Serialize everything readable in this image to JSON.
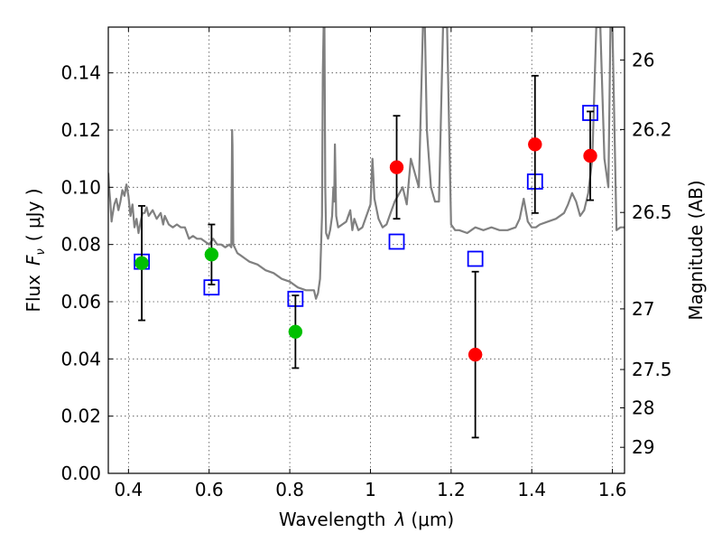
{
  "chart_data": {
    "type": "scatter",
    "xlim": [
      0.35,
      1.63
    ],
    "ylim": [
      0.0,
      0.156
    ],
    "grid": true,
    "xlabel": {
      "prefix": "Wavelength",
      "symbol": "λ",
      "unit": "(μm)"
    },
    "ylabel": {
      "prefix": "Flux",
      "symbol": "F",
      "subscript": "ν",
      "unit": "( μJy )"
    },
    "y2label": "Magnitude (AB)",
    "x_ticks": [
      {
        "v": 0.4,
        "label": "0.4"
      },
      {
        "v": 0.6,
        "label": "0.6"
      },
      {
        "v": 0.8,
        "label": "0.8"
      },
      {
        "v": 1.0,
        "label": "1"
      },
      {
        "v": 1.2,
        "label": "1.2"
      },
      {
        "v": 1.4,
        "label": "1.4"
      },
      {
        "v": 1.6,
        "label": "1.6"
      }
    ],
    "y_ticks": [
      {
        "v": 0.0,
        "label": "0.00"
      },
      {
        "v": 0.02,
        "label": "0.02"
      },
      {
        "v": 0.04,
        "label": "0.04"
      },
      {
        "v": 0.06,
        "label": "0.06"
      },
      {
        "v": 0.08,
        "label": "0.08"
      },
      {
        "v": 0.1,
        "label": "0.10"
      },
      {
        "v": 0.12,
        "label": "0.12"
      },
      {
        "v": 0.14,
        "label": "0.14"
      }
    ],
    "y2_ticks": [
      {
        "flux": 0.1445,
        "label": "26"
      },
      {
        "flux": 0.1202,
        "label": "26.2"
      },
      {
        "flux": 0.0912,
        "label": "26.5"
      },
      {
        "flux": 0.0575,
        "label": "27"
      },
      {
        "flux": 0.0363,
        "label": "27.5"
      },
      {
        "flux": 0.0229,
        "label": "28"
      },
      {
        "flux": 0.0091,
        "label": "29"
      }
    ],
    "sed_model": {
      "color": "#808080",
      "x": [
        0.35,
        0.352,
        0.355,
        0.358,
        0.36,
        0.365,
        0.37,
        0.375,
        0.38,
        0.385,
        0.39,
        0.395,
        0.4,
        0.405,
        0.41,
        0.415,
        0.42,
        0.425,
        0.43,
        0.435,
        0.44,
        0.445,
        0.45,
        0.46,
        0.47,
        0.48,
        0.486,
        0.49,
        0.5,
        0.51,
        0.52,
        0.53,
        0.54,
        0.55,
        0.56,
        0.57,
        0.58,
        0.59,
        0.6,
        0.61,
        0.62,
        0.63,
        0.64,
        0.65,
        0.655,
        0.657,
        0.658,
        0.66,
        0.67,
        0.68,
        0.69,
        0.7,
        0.72,
        0.74,
        0.76,
        0.78,
        0.8,
        0.82,
        0.84,
        0.86,
        0.865,
        0.87,
        0.875,
        0.88,
        0.882,
        0.884,
        0.886,
        0.888,
        0.89,
        0.895,
        0.9,
        0.905,
        0.908,
        0.91,
        0.912,
        0.915,
        0.92,
        0.93,
        0.94,
        0.95,
        0.955,
        0.96,
        0.97,
        0.98,
        0.99,
        1.0,
        1.005,
        1.01,
        1.02,
        1.03,
        1.04,
        1.05,
        1.06,
        1.08,
        1.09,
        1.1,
        1.11,
        1.12,
        1.13,
        1.135,
        1.14,
        1.15,
        1.16,
        1.17,
        1.18,
        1.19,
        1.2,
        1.21,
        1.22,
        1.24,
        1.25,
        1.26,
        1.28,
        1.3,
        1.32,
        1.34,
        1.36,
        1.37,
        1.38,
        1.39,
        1.4,
        1.41,
        1.42,
        1.44,
        1.46,
        1.48,
        1.49,
        1.5,
        1.51,
        1.52,
        1.53,
        1.54,
        1.55,
        1.56,
        1.57,
        1.58,
        1.59,
        1.595,
        1.6,
        1.61,
        1.62,
        1.63
      ],
      "y": [
        0.105,
        0.1,
        0.095,
        0.088,
        0.09,
        0.094,
        0.096,
        0.092,
        0.095,
        0.099,
        0.097,
        0.101,
        0.097,
        0.09,
        0.094,
        0.086,
        0.089,
        0.084,
        0.088,
        0.091,
        0.091,
        0.093,
        0.09,
        0.092,
        0.089,
        0.091,
        0.087,
        0.09,
        0.087,
        0.086,
        0.087,
        0.086,
        0.086,
        0.082,
        0.083,
        0.082,
        0.082,
        0.081,
        0.08,
        0.082,
        0.08,
        0.08,
        0.079,
        0.08,
        0.079,
        0.12,
        0.115,
        0.08,
        0.077,
        0.076,
        0.075,
        0.074,
        0.073,
        0.071,
        0.07,
        0.068,
        0.067,
        0.065,
        0.064,
        0.064,
        0.061,
        0.063,
        0.068,
        0.09,
        0.14,
        0.156,
        0.156,
        0.1,
        0.084,
        0.082,
        0.085,
        0.09,
        0.1,
        0.095,
        0.115,
        0.09,
        0.086,
        0.087,
        0.088,
        0.092,
        0.085,
        0.089,
        0.085,
        0.086,
        0.09,
        0.094,
        0.11,
        0.096,
        0.089,
        0.086,
        0.087,
        0.091,
        0.095,
        0.1,
        0.094,
        0.11,
        0.105,
        0.1,
        0.156,
        0.156,
        0.12,
        0.1,
        0.095,
        0.095,
        0.156,
        0.156,
        0.087,
        0.085,
        0.085,
        0.084,
        0.085,
        0.086,
        0.085,
        0.086,
        0.085,
        0.085,
        0.086,
        0.089,
        0.096,
        0.088,
        0.086,
        0.086,
        0.087,
        0.088,
        0.089,
        0.091,
        0.094,
        0.098,
        0.095,
        0.09,
        0.092,
        0.098,
        0.11,
        0.156,
        0.156,
        0.11,
        0.1,
        0.156,
        0.156,
        0.085,
        0.086,
        0.086
      ]
    },
    "series": [
      {
        "marker": "filled-circle",
        "color": "#00c000",
        "points": [
          {
            "x": 0.433,
            "y": 0.0735,
            "err": 0.02
          },
          {
            "x": 0.606,
            "y": 0.0765,
            "err": 0.0105
          },
          {
            "x": 0.814,
            "y": 0.0495,
            "err": 0.0127
          }
        ]
      },
      {
        "marker": "filled-circle",
        "color": "#ff0000",
        "points": [
          {
            "x": 1.065,
            "y": 0.107,
            "err": 0.018
          },
          {
            "x": 1.26,
            "y": 0.0415,
            "err": 0.029
          },
          {
            "x": 1.408,
            "y": 0.115,
            "err": 0.024
          },
          {
            "x": 1.545,
            "y": 0.111,
            "err": 0.0155
          }
        ]
      },
      {
        "marker": "open-square",
        "color": "#0000ff",
        "points": [
          {
            "x": 0.433,
            "y": 0.074
          },
          {
            "x": 0.606,
            "y": 0.065
          },
          {
            "x": 0.814,
            "y": 0.061
          },
          {
            "x": 1.065,
            "y": 0.081
          },
          {
            "x": 1.26,
            "y": 0.075
          },
          {
            "x": 1.408,
            "y": 0.102
          },
          {
            "x": 1.545,
            "y": 0.126
          }
        ]
      }
    ]
  }
}
